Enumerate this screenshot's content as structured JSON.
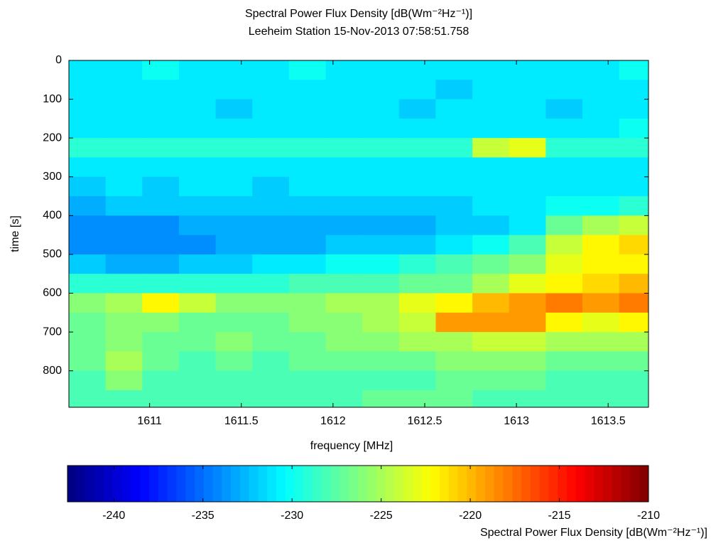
{
  "chart_data": {
    "type": "heatmap",
    "title": "Spectral Power Flux Density [dB(Wm⁻²Hz⁻¹)]",
    "subtitle": "Leeheim Station 15-Nov-2013 07:58:51.758",
    "x_label": "frequency [MHz]",
    "y_label": "time [s]",
    "colorbar_label": "Spectral Power Flux Density [dB(Wm⁻²Hz⁻¹)]",
    "colormap": "jet",
    "xlim": [
      1610.56,
      1613.72
    ],
    "xticks": [
      1611,
      1611.5,
      1612,
      1612.5,
      1613,
      1613.5
    ],
    "ylim": [
      0,
      894
    ],
    "yticks": [
      0,
      100,
      200,
      300,
      400,
      500,
      600,
      700,
      800
    ],
    "y_reversed": true,
    "clim": [
      -242.6,
      -210
    ],
    "cticks": [
      -240,
      -235,
      -230,
      -225,
      -220,
      -215,
      -210
    ],
    "xbins": [
      1610.56,
      1610.76,
      1610.96,
      1611.16,
      1611.36,
      1611.56,
      1611.76,
      1611.96,
      1612.16,
      1612.36,
      1612.56,
      1612.76,
      1612.96,
      1613.16,
      1613.36,
      1613.56,
      1613.72
    ],
    "ybins": [
      0,
      50,
      100,
      150,
      200,
      250,
      300,
      350,
      400,
      450,
      500,
      550,
      600,
      650,
      700,
      750,
      800,
      850,
      894
    ],
    "values": [
      [
        -231,
        -231,
        -230,
        -231,
        -231,
        -231,
        -230,
        -231,
        -231,
        -231,
        -231,
        -231,
        -231,
        -231,
        -231,
        -230
      ],
      [
        -231,
        -231,
        -231,
        -231,
        -231,
        -231,
        -231,
        -231,
        -231,
        -231,
        -232,
        -231,
        -231,
        -231,
        -231,
        -231
      ],
      [
        -231,
        -231,
        -231,
        -231,
        -232,
        -231,
        -231,
        -231,
        -231,
        -232,
        -231,
        -231,
        -231,
        -232,
        -231,
        -231
      ],
      [
        -231,
        -231,
        -231,
        -231,
        -231,
        -231,
        -231,
        -231,
        -231,
        -231,
        -231,
        -231,
        -231,
        -231,
        -231,
        -230
      ],
      [
        -229,
        -229,
        -229,
        -229,
        -229,
        -229,
        -229,
        -229,
        -229,
        -229,
        -229,
        -224,
        -223,
        -229,
        -229,
        -229
      ],
      [
        -231,
        -231,
        -231,
        -231,
        -231,
        -231,
        -231,
        -231,
        -231,
        -231,
        -231,
        -231,
        -231,
        -231,
        -231,
        -231
      ],
      [
        -232,
        -231,
        -232,
        -231,
        -231,
        -232,
        -231,
        -231,
        -231,
        -231,
        -231,
        -231,
        -231,
        -231,
        -231,
        -231
      ],
      [
        -233,
        -232,
        -232,
        -232,
        -232,
        -232,
        -232,
        -232,
        -232,
        -232,
        -232,
        -231,
        -231,
        -230,
        -230,
        -229
      ],
      [
        -234,
        -234,
        -234,
        -233,
        -233,
        -233,
        -233,
        -233,
        -233,
        -233,
        -232,
        -232,
        -231,
        -227,
        -225,
        -224
      ],
      [
        -234,
        -234,
        -234,
        -234,
        -233,
        -233,
        -233,
        -232,
        -232,
        -232,
        -231,
        -230,
        -228,
        -224,
        -222,
        -221
      ],
      [
        -232,
        -233,
        -233,
        -232,
        -232,
        -231,
        -231,
        -230,
        -230,
        -229,
        -228,
        -227,
        -226,
        -223,
        -222,
        -222
      ],
      [
        -229,
        -229,
        -229,
        -229,
        -229,
        -229,
        -228,
        -228,
        -228,
        -227,
        -227,
        -225,
        -223,
        -222,
        -221,
        -220
      ],
      [
        -226,
        -225,
        -222,
        -224,
        -226,
        -226,
        -226,
        -225,
        -225,
        -223,
        -222,
        -220,
        -219,
        -218,
        -219,
        -218
      ],
      [
        -227,
        -226,
        -226,
        -227,
        -227,
        -227,
        -226,
        -226,
        -225,
        -224,
        -219,
        -219,
        -219,
        -222,
        -223,
        -222
      ],
      [
        -227,
        -226,
        -227,
        -227,
        -226,
        -227,
        -227,
        -226,
        -226,
        -225,
        -225,
        -224,
        -224,
        -225,
        -225,
        -225
      ],
      [
        -227,
        -225,
        -227,
        -228,
        -227,
        -228,
        -227,
        -227,
        -227,
        -227,
        -226,
        -226,
        -226,
        -227,
        -227,
        -227
      ],
      [
        -228,
        -226,
        -228,
        -228,
        -228,
        -228,
        -228,
        -228,
        -228,
        -228,
        -227,
        -227,
        -227,
        -228,
        -228,
        -228
      ],
      [
        -228,
        -228,
        -228,
        -228,
        -228,
        -228,
        -228,
        -228,
        -227,
        -227,
        -227,
        -228,
        -228,
        -228,
        -228,
        -228
      ]
    ]
  }
}
